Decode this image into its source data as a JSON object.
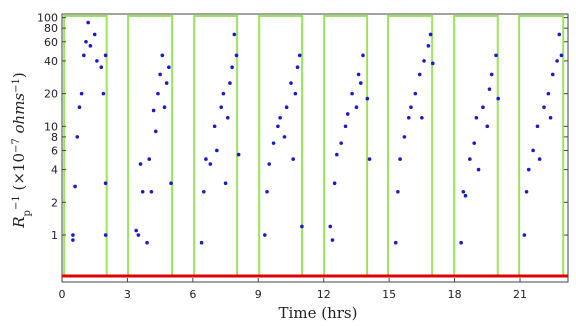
{
  "chart_data": {
    "type": "scatter",
    "xlabel": "Time (hrs)",
    "ylabel_parts": [
      {
        "text": "R",
        "style": "italic"
      },
      {
        "text": "p",
        "style": "sub"
      },
      {
        "text": "−1",
        "style": "sup"
      },
      {
        "text": "  (×10",
        "style": "normal"
      },
      {
        "text": "−7",
        "style": "sup"
      },
      {
        "text": " ohms",
        "style": "italic"
      },
      {
        "text": "−1",
        "style": "sup"
      },
      {
        "text": ")",
        "style": "normal"
      }
    ],
    "xlim": [
      0,
      23.2
    ],
    "ylim": [
      0.37,
      108
    ],
    "log_y": true,
    "xticks": [
      0,
      3,
      6,
      9,
      12,
      15,
      18,
      21
    ],
    "yticks": [
      1,
      2,
      4,
      6,
      8,
      10,
      20,
      40,
      60,
      80,
      100
    ],
    "windows": {
      "color": "#9be35c",
      "start": [
        0.1,
        3.03,
        6.06,
        9.04,
        12.02,
        14.95,
        17.98,
        20.96
      ],
      "end": [
        2.05,
        5.05,
        8.03,
        11.01,
        13.99,
        16.97,
        19.98,
        22.98
      ]
    },
    "baseline": {
      "value": 0.42,
      "color": "#e00000"
    },
    "series": [
      {
        "color": "#1a1ac8",
        "x": [
          0.5,
          0.5,
          0.6,
          0.7,
          0.8,
          0.9,
          1.0,
          1.1,
          1.2,
          1.3,
          1.5,
          1.6,
          1.8,
          1.9,
          2.0,
          2.0,
          2.0,
          3.4,
          3.5,
          3.6,
          3.7,
          3.9,
          4.0,
          4.1,
          4.2,
          4.3,
          4.4,
          4.5,
          4.6,
          4.7,
          4.8,
          4.9,
          5.0,
          6.4,
          6.5,
          6.6,
          6.8,
          7.0,
          7.1,
          7.3,
          7.4,
          7.5,
          7.6,
          7.7,
          7.8,
          7.9,
          8.0,
          8.1,
          9.3,
          9.4,
          9.5,
          9.7,
          9.9,
          10.0,
          10.2,
          10.3,
          10.5,
          10.6,
          10.7,
          10.8,
          10.9,
          11.0,
          12.3,
          12.4,
          12.5,
          12.6,
          12.8,
          13.0,
          13.1,
          13.3,
          13.5,
          13.6,
          13.7,
          13.8,
          14.0,
          14.1,
          15.3,
          15.4,
          15.5,
          15.7,
          15.9,
          16.0,
          16.2,
          16.4,
          16.5,
          16.6,
          16.8,
          16.9,
          17.0,
          18.3,
          18.4,
          18.5,
          18.7,
          18.9,
          19.0,
          19.1,
          19.3,
          19.5,
          19.6,
          19.7,
          19.9,
          20.0,
          21.2,
          21.3,
          21.4,
          21.6,
          21.8,
          21.9,
          22.1,
          22.3,
          22.4,
          22.5,
          22.7,
          22.8,
          22.9
        ],
        "values": [
          0.9,
          1.0,
          2.8,
          8,
          15,
          20,
          45,
          60,
          90,
          55,
          70,
          40,
          35,
          20,
          45,
          3,
          1,
          1.1,
          1.0,
          4.5,
          2.5,
          0.85,
          5,
          2.5,
          14,
          9,
          20,
          30,
          45,
          15,
          25,
          35,
          3,
          0.85,
          2.5,
          5,
          4.5,
          10,
          6,
          15,
          20,
          3,
          12,
          25,
          35,
          70,
          45,
          5.5,
          1,
          2.5,
          4.5,
          7,
          10,
          12,
          8,
          15,
          25,
          5,
          20,
          35,
          45,
          1.2,
          1.2,
          0.9,
          3,
          5.5,
          7,
          10,
          13,
          20,
          15,
          30,
          25,
          45,
          18,
          5,
          0.85,
          2.5,
          5,
          8,
          12,
          15,
          20,
          30,
          12,
          40,
          55,
          70,
          38,
          0.85,
          2.5,
          2.3,
          5,
          7,
          12,
          4,
          15,
          10,
          22,
          30,
          45,
          18,
          1,
          2.5,
          4,
          6,
          10,
          5,
          15,
          20,
          12,
          30,
          40,
          70,
          45
        ]
      }
    ]
  }
}
